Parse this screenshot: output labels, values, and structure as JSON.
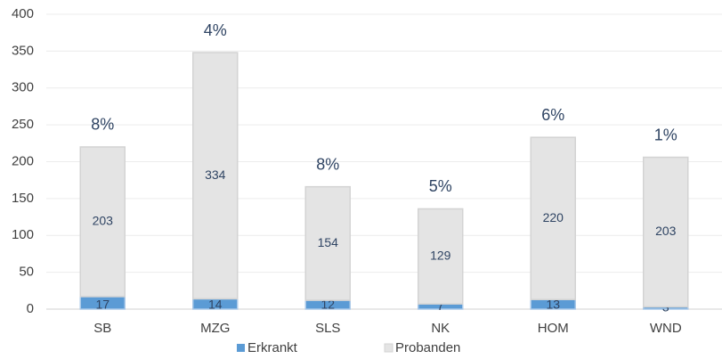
{
  "chart_data": {
    "type": "stacked_bar",
    "categories": [
      "SB",
      "MZG",
      "SLS",
      "NK",
      "HOM",
      "WND"
    ],
    "series": [
      {
        "name": "Erkrankt",
        "color": "#5b9bd5",
        "values": [
          17,
          14,
          12,
          7,
          13,
          3
        ]
      },
      {
        "name": "Probanden",
        "color": "#e4e4e4",
        "values": [
          203,
          334,
          154,
          129,
          220,
          203
        ]
      }
    ],
    "annotations": [
      "8%",
      "4%",
      "8%",
      "5%",
      "6%",
      "1%"
    ],
    "ylim": [
      0,
      400
    ],
    "yticks": [
      0,
      50,
      100,
      150,
      200,
      250,
      300,
      350,
      400
    ],
    "grid": true,
    "legend": "bottom"
  }
}
